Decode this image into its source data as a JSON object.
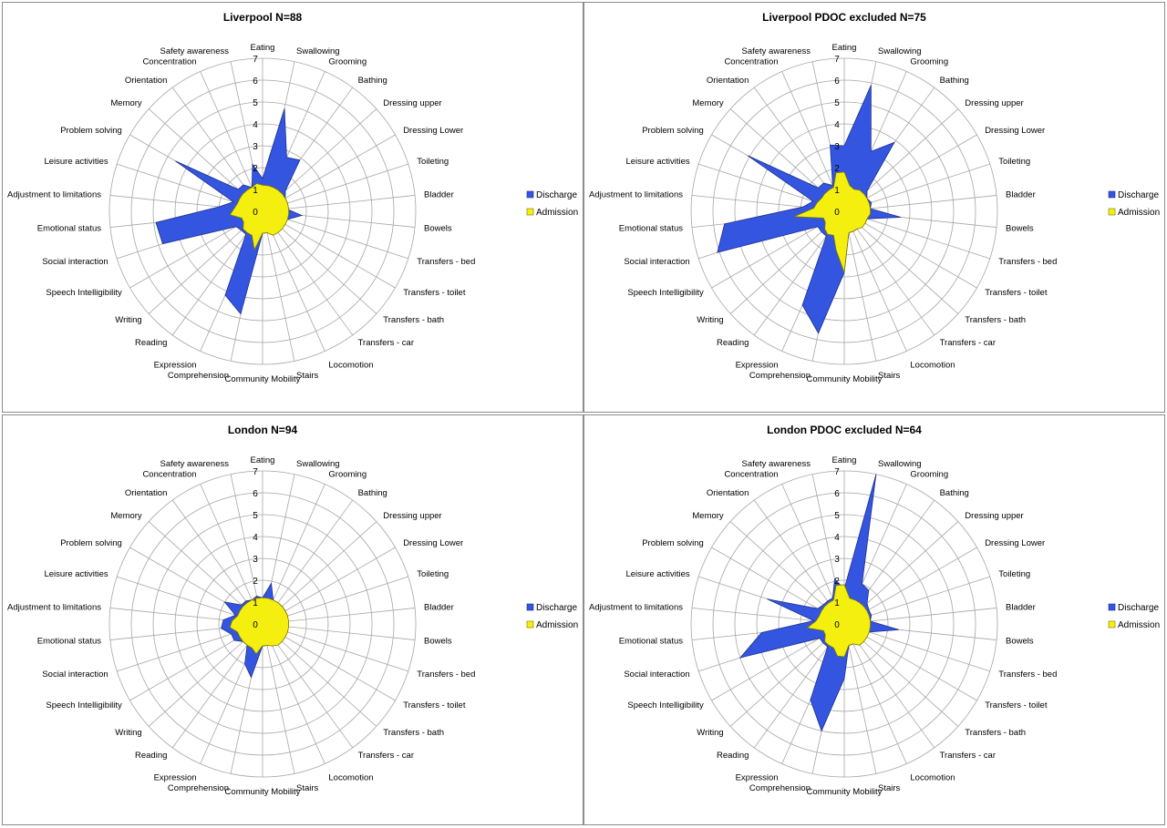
{
  "colors": {
    "discharge": "#3355e0",
    "discharge_stroke": "#1e2f8a",
    "admission": "#f5ef10",
    "admission_stroke": "#7a7400",
    "grid": "#a6a6a6"
  },
  "chart_data": [
    {
      "type": "radar",
      "title": "Liverpool N=88",
      "categories": [
        "Eating",
        "Swallowing",
        "Grooming",
        "Bathing",
        "Dressing upper",
        "Dressing Lower",
        "Toileting",
        "Bladder",
        "Bowels",
        "Transfers - bed",
        "Transfers - toilet",
        "Transfers - bath",
        "Transfers - car",
        "Locomotion",
        "Stairs",
        "Community Mobility",
        "Comprehension",
        "Expression",
        "Reading",
        "Writing",
        "Speech Intelligibility",
        "Social interaction",
        "Emotional status",
        "Adjustment to limitations",
        "Leisure activities",
        "Problem solving",
        "Memory",
        "Orientation",
        "Concentration",
        "Safety awareness"
      ],
      "ticks": [
        "0",
        "1",
        "2",
        "3",
        "4",
        "5",
        "6",
        "7"
      ],
      "rlim": [
        0,
        7
      ],
      "legend": "right",
      "series": [
        {
          "name": "Discharge",
          "values": [
            1.5,
            4.8,
            2.7,
            2.9,
            1.4,
            1.2,
            1.2,
            1.1,
            1.8,
            1.2,
            1.1,
            1.0,
            1.0,
            1.0,
            1.0,
            1.0,
            4.8,
            4.2,
            1.3,
            1.3,
            1.4,
            4.8,
            4.9,
            2.0,
            1.4,
            4.6,
            1.5,
            1.5,
            1.2,
            2.2
          ]
        },
        {
          "name": "Admission",
          "values": [
            1.2,
            1.2,
            1.2,
            1.2,
            1.2,
            1.2,
            1.2,
            1.2,
            1.2,
            1.2,
            1.2,
            1.2,
            1.2,
            1.2,
            1.0,
            1.0,
            1.8,
            1.2,
            1.2,
            1.2,
            1.0,
            1.0,
            1.5,
            1.3,
            1.2,
            1.2,
            1.2,
            1.2,
            1.2,
            1.3
          ]
        }
      ]
    },
    {
      "type": "radar",
      "title": "Liverpool PDOC excluded N=75",
      "categories": [
        "Eating",
        "Swallowing",
        "Grooming",
        "Bathing",
        "Dressing upper",
        "Dressing Lower",
        "Toileting",
        "Bladder",
        "Bowels",
        "Transfers - bed",
        "Transfers - toilet",
        "Transfers - bath",
        "Transfers - car",
        "Locomotion",
        "Stairs",
        "Community Mobility",
        "Comprehension",
        "Expression",
        "Reading",
        "Writing",
        "Speech Intelligibility",
        "Social interaction",
        "Emotional status",
        "Adjustment to limitations",
        "Leisure activities",
        "Problem solving",
        "Memory",
        "Orientation",
        "Concentration",
        "Safety awareness"
      ],
      "ticks": [
        "0",
        "1",
        "2",
        "3",
        "4",
        "5",
        "6",
        "7"
      ],
      "rlim": [
        0,
        7
      ],
      "legend": "right",
      "series": [
        {
          "name": "Discharge",
          "values": [
            3.0,
            5.9,
            3.0,
            3.9,
            1.4,
            1.2,
            1.3,
            1.2,
            2.6,
            1.1,
            1.1,
            1.0,
            1.0,
            1.0,
            1.0,
            2.8,
            5.7,
            4.7,
            1.4,
            1.4,
            1.4,
            6.1,
            5.5,
            1.9,
            1.5,
            5.1,
            1.6,
            1.6,
            1.3,
            3.1
          ]
        },
        {
          "name": "Admission",
          "values": [
            1.8,
            1.2,
            1.1,
            1.2,
            1.2,
            1.2,
            1.2,
            1.2,
            1.2,
            1.1,
            1.1,
            1.1,
            1.0,
            1.0,
            1.0,
            2.8,
            1.8,
            1.2,
            1.3,
            1.2,
            1.0,
            1.0,
            2.3,
            1.4,
            1.3,
            1.2,
            1.2,
            1.2,
            1.2,
            1.8
          ]
        }
      ]
    },
    {
      "type": "radar",
      "title": "London N=94",
      "categories": [
        "Eating",
        "Swallowing",
        "Grooming",
        "Bathing",
        "Dressing upper",
        "Dressing Lower",
        "Toileting",
        "Bladder",
        "Bowels",
        "Transfers - bed",
        "Transfers - toilet",
        "Transfers - bath",
        "Transfers - car",
        "Locomotion",
        "Stairs",
        "Community Mobility",
        "Comprehension",
        "Expression",
        "Reading",
        "Writing",
        "Speech Intelligibility",
        "Social interaction",
        "Emotional status",
        "Adjustment to limitations",
        "Leisure activities",
        "Problem solving",
        "Memory",
        "Orientation",
        "Concentration",
        "Safety awareness"
      ],
      "ticks": [
        "0",
        "1",
        "2",
        "3",
        "4",
        "5",
        "6",
        "7"
      ],
      "rlim": [
        0,
        7
      ],
      "legend": "right",
      "series": [
        {
          "name": "Discharge",
          "values": [
            1.2,
            1.9,
            1.2,
            1.2,
            1.2,
            1.2,
            1.2,
            1.1,
            1.1,
            1.1,
            1.1,
            1.0,
            1.0,
            1.0,
            1.0,
            1.0,
            2.5,
            2.0,
            1.2,
            1.2,
            1.5,
            1.5,
            1.9,
            1.8,
            1.3,
            2.0,
            1.3,
            1.3,
            1.2,
            1.3
          ]
        },
        {
          "name": "Admission",
          "values": [
            1.2,
            1.2,
            1.2,
            1.2,
            1.2,
            1.2,
            1.2,
            1.2,
            1.2,
            1.2,
            1.2,
            1.2,
            1.2,
            1.1,
            1.0,
            1.0,
            1.4,
            1.2,
            1.2,
            1.2,
            1.2,
            1.2,
            1.5,
            1.4,
            1.2,
            1.2,
            1.2,
            1.2,
            1.2,
            1.2
          ]
        }
      ]
    },
    {
      "type": "radar",
      "title": "London PDOC excluded N=64",
      "categories": [
        "Eating",
        "Swallowing",
        "Grooming",
        "Bathing",
        "Dressing upper",
        "Dressing Lower",
        "Toileting",
        "Bladder",
        "Bowels",
        "Transfers - bed",
        "Transfers - toilet",
        "Transfers - bath",
        "Transfers - car",
        "Locomotion",
        "Stairs",
        "Community Mobility",
        "Comprehension",
        "Expression",
        "Reading",
        "Writing",
        "Speech Intelligibility",
        "Social interaction",
        "Emotional status",
        "Adjustment to limitations",
        "Leisure activities",
        "Problem solving",
        "Memory",
        "Orientation",
        "Concentration",
        "Safety awareness"
      ],
      "ticks": [
        "0",
        "1",
        "2",
        "3",
        "4",
        "5",
        "6",
        "7"
      ],
      "rlim": [
        0,
        7
      ],
      "legend": "right",
      "series": [
        {
          "name": "Discharge",
          "values": [
            1.6,
            7.0,
            2.0,
            1.9,
            1.4,
            1.3,
            1.3,
            1.2,
            2.5,
            1.2,
            1.1,
            1.0,
            1.0,
            1.0,
            1.0,
            2.5,
            5.0,
            3.8,
            1.3,
            1.3,
            1.3,
            5.0,
            3.8,
            1.4,
            3.7,
            1.4,
            1.3,
            1.3,
            1.3,
            2.1
          ]
        },
        {
          "name": "Admission",
          "values": [
            1.8,
            1.2,
            1.2,
            1.2,
            1.2,
            1.2,
            1.2,
            1.2,
            1.2,
            1.2,
            1.2,
            1.2,
            1.2,
            1.0,
            1.0,
            1.5,
            1.5,
            1.2,
            1.2,
            1.2,
            1.0,
            1.0,
            1.7,
            1.3,
            1.2,
            1.2,
            1.2,
            1.2,
            1.2,
            1.8
          ]
        }
      ]
    }
  ]
}
